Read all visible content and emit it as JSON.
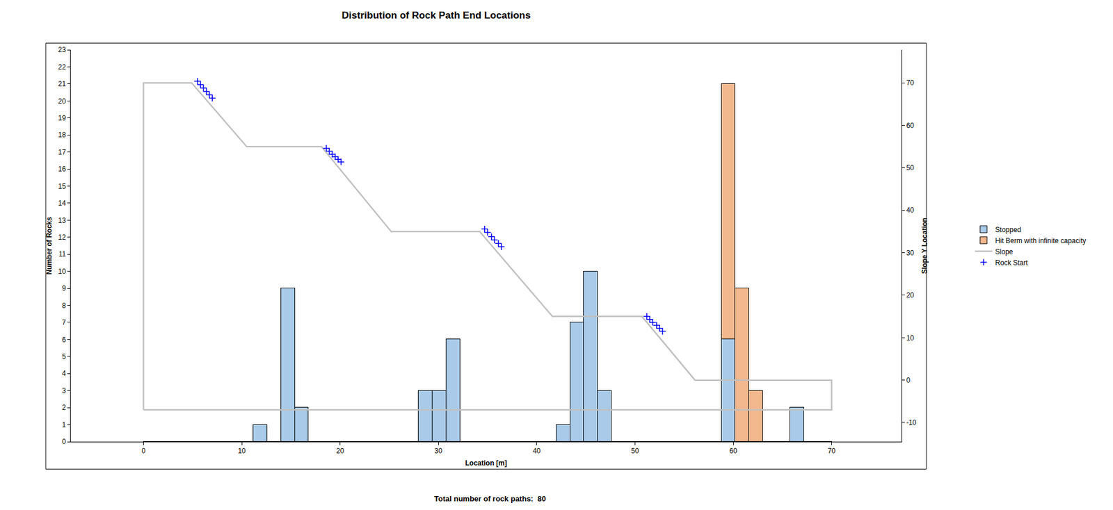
{
  "chart_data": {
    "type": "histogram",
    "title": "Distribution of Rock Path End Locations",
    "xlabel": "Location [m]",
    "ylabel": "Number of Rocks",
    "y2label": "Slope Y Location",
    "annotations": [
      "Total number of rock paths:  80"
    ],
    "bins": [
      0,
      1.4,
      2.8,
      4.2,
      5.6,
      7,
      8.4,
      9.8,
      11.2,
      12.6,
      14,
      15.4,
      16.8,
      18.2,
      19.6,
      21,
      22.4,
      23.8,
      25.2,
      26.6,
      28,
      29.4,
      30.8,
      32.2,
      33.6,
      35,
      36.4,
      37.8,
      39.2,
      40.6,
      42,
      43.4,
      44.8,
      46.2,
      47.6,
      49,
      50.4,
      51.8,
      53.2,
      54.6,
      56,
      57.4,
      58.8,
      60.2,
      61.6,
      63,
      64.4,
      65.8,
      67.2,
      68.6,
      70
    ],
    "stacked": true,
    "grid": false,
    "legend": "right",
    "series": [
      {
        "name": "Stopped",
        "type": "histogram",
        "color": "#a9cbe9",
        "values": [
          0,
          0,
          0,
          0,
          0,
          0,
          0,
          0,
          1,
          0,
          9,
          2,
          0,
          0,
          0,
          0,
          0,
          0,
          0,
          0,
          3,
          3,
          6,
          0,
          0,
          0,
          0,
          0,
          0,
          0,
          1,
          7,
          10,
          3,
          0,
          0,
          0,
          0,
          0,
          0,
          0,
          0,
          6,
          0,
          0,
          0,
          0,
          2,
          0,
          0
        ]
      },
      {
        "name": "Hit Berm with infinite capacity",
        "type": "histogram",
        "color": "#f4b88e",
        "values": [
          0,
          0,
          0,
          0,
          0,
          0,
          0,
          0,
          0,
          0,
          0,
          0,
          0,
          0,
          0,
          0,
          0,
          0,
          0,
          0,
          0,
          0,
          0,
          0,
          0,
          0,
          0,
          0,
          0,
          0,
          0,
          0,
          0,
          0,
          0,
          0,
          0,
          0,
          0,
          0,
          0,
          0,
          15,
          9,
          3,
          0,
          0,
          0,
          0,
          0
        ]
      },
      {
        "name": "Slope",
        "type": "line",
        "axis": "y2",
        "color": "#c0c0c0",
        "line_style": "solid",
        "x": [
          0,
          0,
          4.9,
          10.5,
          18.1,
          25.2,
          34.2,
          41.6,
          50.7,
          56.1,
          70,
          70,
          0
        ],
        "y": [
          -7,
          70,
          70,
          55,
          55,
          35,
          35,
          15,
          15,
          0,
          0,
          -7,
          -7
        ]
      },
      {
        "name": "Rock Start",
        "type": "scatter",
        "axis": "y2",
        "color": "#0000ff",
        "marker": "cross",
        "x": [
          5.5,
          5.8,
          6.1,
          6.4,
          6.7,
          7.0,
          18.6,
          18.9,
          19.2,
          19.5,
          19.8,
          20.1,
          34.7,
          35.0,
          35.4,
          35.7,
          36.1,
          36.4,
          51.2,
          51.5,
          51.8,
          52.2,
          52.5,
          52.8
        ],
        "y": [
          70.4,
          69.6,
          68.8,
          68.0,
          67.2,
          66.4,
          54.6,
          53.9,
          53.2,
          52.6,
          52.0,
          51.4,
          35.6,
          34.8,
          33.8,
          33.0,
          32.2,
          31.4,
          15.0,
          14.3,
          13.6,
          12.9,
          12.2,
          11.5
        ]
      }
    ],
    "xlim": [
      -7.4,
      77.1
    ],
    "xticks": [
      0,
      10,
      20,
      30,
      40,
      50,
      60,
      70
    ],
    "ylim": [
      0,
      23
    ],
    "yticks": [
      0,
      1,
      2,
      3,
      4,
      5,
      6,
      7,
      8,
      9,
      10,
      11,
      12,
      13,
      14,
      15,
      16,
      17,
      18,
      19,
      20,
      21,
      22,
      23
    ],
    "y2lim": [
      -14.5,
      77.8
    ],
    "y2ticks": [
      -10,
      0,
      10,
      20,
      30,
      40,
      50,
      60,
      70
    ]
  }
}
